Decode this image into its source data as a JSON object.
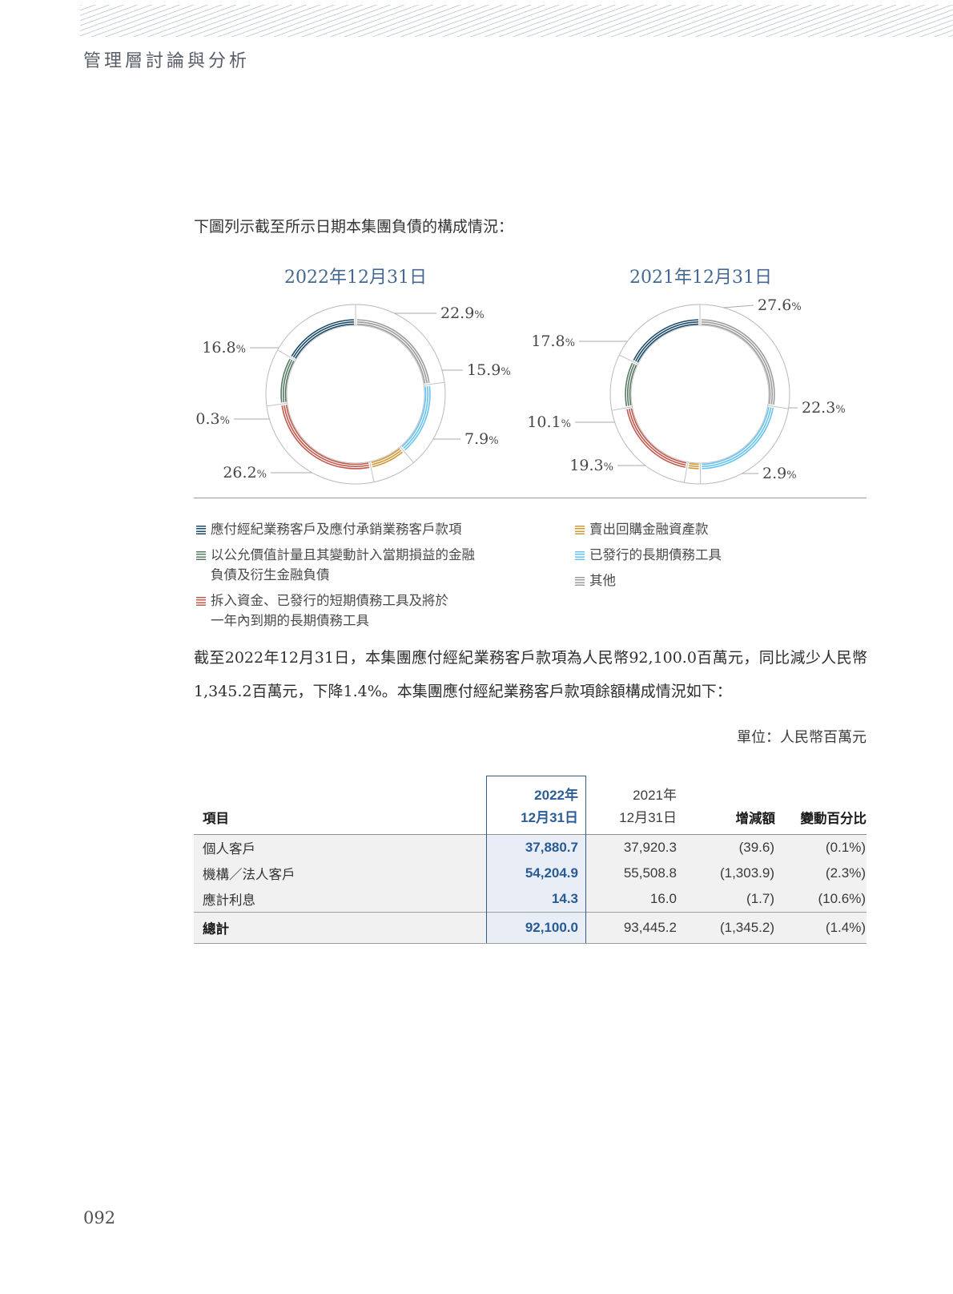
{
  "page": {
    "section_title": "管理層討論與分析",
    "intro": "下圖列示截至所示日期本集團負債的構成情況：",
    "paragraph": "截至2022年12月31日，本集團應付經紀業務客戶款項為人民幣92,100.0百萬元，同比減少人民幣1,345.2百萬元，下降1.4%。本集團應付經紀業務客戶款項餘額構成情況如下：",
    "unit_note": "單位：人民幣百萬元",
    "page_number": "092"
  },
  "chart_data": [
    {
      "type": "pie",
      "subtype": "donut",
      "title": "2022年12月31日",
      "value_unit": "%",
      "segments": [
        {
          "label": "其他",
          "value": 22.9,
          "color": "#9c9c9c"
        },
        {
          "label": "已發行的長期債務工具",
          "value": 15.9,
          "color": "#66c3ee"
        },
        {
          "label": "賣出回購金融資產款",
          "value": 7.9,
          "color": "#cf9838"
        },
        {
          "label": "拆入資金、已發行的短期債務工具及將於一年內到期的長期債務工具",
          "value": 26.2,
          "color": "#c25a4e"
        },
        {
          "label": "以公允價值計量且其變動計入當期損益的金融負債及衍生金融負債",
          "value": 10.3,
          "color": "#577a63"
        },
        {
          "label": "應付經紀業務客戶及應付承銷業務客戶款項",
          "value": 16.8,
          "color": "#1b4a68"
        }
      ]
    },
    {
      "type": "pie",
      "subtype": "donut",
      "title": "2021年12月31日",
      "value_unit": "%",
      "segments": [
        {
          "label": "其他",
          "value": 27.6,
          "color": "#9c9c9c"
        },
        {
          "label": "已發行的長期債務工具",
          "value": 22.3,
          "color": "#66c3ee"
        },
        {
          "label": "賣出回購金融資產款",
          "value": 2.9,
          "color": "#cf9838"
        },
        {
          "label": "拆入資金、已發行的短期債務工具及將於一年內到期的長期債務工具",
          "value": 19.3,
          "color": "#c25a4e"
        },
        {
          "label": "以公允價值計量且其變動計入當期損益的金融負債及衍生金融負債",
          "value": 10.1,
          "color": "#577a63"
        },
        {
          "label": "應付經紀業務客戶及應付承銷業務客戶款項",
          "value": 17.8,
          "color": "#1b4a68"
        }
      ]
    }
  ],
  "legend": {
    "left": [
      {
        "lines": [
          "應付經紀業務客戶及應付承銷業務客戶款項"
        ],
        "color": "#1b4a68"
      },
      {
        "lines": [
          "以公允價值計量且其變動計入當期損益的金融",
          "負債及衍生金融負債"
        ],
        "color": "#577a63"
      },
      {
        "lines": [
          "拆入資金、已發行的短期債務工具及將於",
          "一年內到期的長期債務工具"
        ],
        "color": "#c25a4e"
      }
    ],
    "right": [
      {
        "lines": [
          "賣出回購金融資產款"
        ],
        "color": "#cf9838"
      },
      {
        "lines": [
          "已發行的長期債務工具"
        ],
        "color": "#66c3ee"
      },
      {
        "lines": [
          "其他"
        ],
        "color": "#9c9c9c"
      }
    ]
  },
  "table": {
    "header": {
      "item": "項目",
      "col2022": [
        "2022年",
        "12月31日"
      ],
      "col2021": [
        "2021年",
        "12月31日"
      ],
      "change": "增減額",
      "pct": "變動百分比"
    },
    "rows": [
      {
        "item": "個人客戶",
        "v2022": "37,880.7",
        "v2021": "37,920.3",
        "change": "(39.6)",
        "pct": "(0.1%)"
      },
      {
        "item": "機構／法人客戶",
        "v2022": "54,204.9",
        "v2021": "55,508.8",
        "change": "(1,303.9)",
        "pct": "(2.3%)"
      },
      {
        "item": "應計利息",
        "v2022": "14.3",
        "v2021": "16.0",
        "change": "(1.7)",
        "pct": "(10.6%)"
      }
    ],
    "total": {
      "item": "總計",
      "v2022": "92,100.0",
      "v2021": "93,445.2",
      "change": "(1,345.2)",
      "pct": "(1.4%)"
    }
  },
  "colors": {
    "title_blue": "#44688f",
    "table_accent": "#2b5d96",
    "table_col_bg": "#e9eef6"
  }
}
